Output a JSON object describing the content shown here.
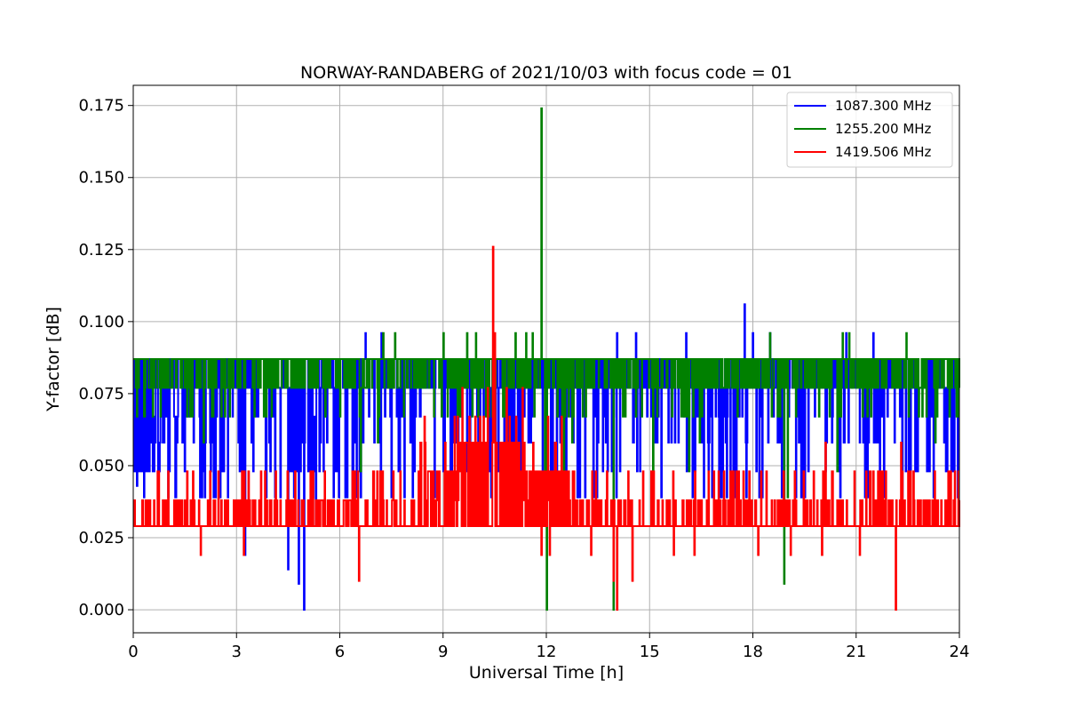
{
  "chart_data": {
    "type": "line",
    "title": "NORWAY-RANDABERG of 2021/10/03 with focus code = 01",
    "xlabel": "Universal Time [h]",
    "ylabel": "Y-factor [dB]",
    "xlim": [
      0,
      24
    ],
    "ylim": [
      -0.008,
      0.182
    ],
    "xticks": [
      0,
      3,
      6,
      9,
      12,
      15,
      18,
      21,
      24
    ],
    "xtick_labels": [
      "0",
      "3",
      "6",
      "9",
      "12",
      "15",
      "18",
      "21",
      "24"
    ],
    "yticks": [
      0.0,
      0.025,
      0.05,
      0.075,
      0.1,
      0.125,
      0.15,
      0.175
    ],
    "ytick_labels": [
      "0.000",
      "0.025",
      "0.050",
      "0.075",
      "0.100",
      "0.125",
      "0.150",
      "0.175"
    ],
    "grid": true,
    "legend_position": "top-right",
    "series": [
      {
        "name": "1087.300 MHz",
        "color": "#0000ff",
        "baseline": 0.087,
        "levels": [
          0.077,
          0.067,
          0.058,
          0.048,
          0.039
        ],
        "segments": [
          {
            "x0": 0.0,
            "x1": 0.8,
            "level": 0.048
          },
          {
            "x0": 0.8,
            "x1": 1.5,
            "level": 0.067
          },
          {
            "x0": 1.5,
            "x1": 4.5,
            "level": 0.077
          },
          {
            "x0": 4.5,
            "x1": 5.4,
            "level": 0.048
          },
          {
            "x0": 5.4,
            "x1": 24.0,
            "level": 0.077
          }
        ],
        "spikes": [
          {
            "x": 0.1,
            "y": 0.043
          },
          {
            "x": 3.25,
            "y": 0.019
          },
          {
            "x": 4.5,
            "y": 0.014
          },
          {
            "x": 4.8,
            "y": 0.009
          },
          {
            "x": 4.95,
            "y": 0.0
          },
          {
            "x": 5.3,
            "y": 0.029
          },
          {
            "x": 6.75,
            "y": 0.096
          },
          {
            "x": 7.2,
            "y": 0.096
          },
          {
            "x": 17.75,
            "y": 0.106
          },
          {
            "x": 14.05,
            "y": 0.096
          },
          {
            "x": 14.6,
            "y": 0.096
          },
          {
            "x": 16.05,
            "y": 0.096
          },
          {
            "x": 18.0,
            "y": 0.096
          },
          {
            "x": 18.5,
            "y": 0.096
          },
          {
            "x": 20.7,
            "y": 0.096
          },
          {
            "x": 20.5,
            "y": 0.048
          },
          {
            "x": 21.5,
            "y": 0.096
          },
          {
            "x": 9.5,
            "y": 0.077
          },
          {
            "x": 10.9,
            "y": 0.058
          },
          {
            "x": 12.3,
            "y": 0.048
          },
          {
            "x": 13.7,
            "y": 0.067
          }
        ]
      },
      {
        "name": "1255.200 MHz",
        "color": "#008000",
        "baseline": 0.087,
        "levels": [
          0.077,
          0.067,
          0.058,
          0.048
        ],
        "segments": [],
        "spikes": [
          {
            "x": 11.85,
            "y": 0.174
          },
          {
            "x": 7.25,
            "y": 0.096
          },
          {
            "x": 7.6,
            "y": 0.096
          },
          {
            "x": 9.0,
            "y": 0.096
          },
          {
            "x": 9.7,
            "y": 0.096
          },
          {
            "x": 9.95,
            "y": 0.096
          },
          {
            "x": 11.1,
            "y": 0.096
          },
          {
            "x": 11.4,
            "y": 0.096
          },
          {
            "x": 11.6,
            "y": 0.096
          },
          {
            "x": 18.5,
            "y": 0.096
          },
          {
            "x": 20.6,
            "y": 0.096
          },
          {
            "x": 20.8,
            "y": 0.096
          },
          {
            "x": 22.45,
            "y": 0.096
          },
          {
            "x": 12.0,
            "y": 0.0
          },
          {
            "x": 13.95,
            "y": 0.0
          },
          {
            "x": 18.9,
            "y": 0.009
          },
          {
            "x": 6.6,
            "y": 0.048
          },
          {
            "x": 2.05,
            "y": 0.058
          },
          {
            "x": 7.1,
            "y": 0.058
          },
          {
            "x": 11.95,
            "y": 0.048
          },
          {
            "x": 12.5,
            "y": 0.048
          },
          {
            "x": 15.1,
            "y": 0.048
          },
          {
            "x": 16.15,
            "y": 0.048
          },
          {
            "x": 19.0,
            "y": 0.039
          },
          {
            "x": 20.45,
            "y": 0.048
          },
          {
            "x": 23.3,
            "y": 0.058
          },
          {
            "x": 12.75,
            "y": 0.058
          },
          {
            "x": 16.45,
            "y": 0.058
          }
        ]
      },
      {
        "name": "1419.506 MHz",
        "color": "#ff0000",
        "baseline": 0.029,
        "levels": [
          0.038,
          0.048,
          0.058,
          0.067
        ],
        "segments": [
          {
            "x0": 8.2,
            "x1": 9.4,
            "level": 0.048
          },
          {
            "x0": 9.4,
            "x1": 11.4,
            "level": 0.058
          },
          {
            "x0": 11.4,
            "x1": 12.8,
            "level": 0.048
          }
        ],
        "spikes": [
          {
            "x": 10.45,
            "y": 0.126
          },
          {
            "x": 10.5,
            "y": 0.096
          },
          {
            "x": 10.3,
            "y": 0.077
          },
          {
            "x": 10.85,
            "y": 0.077
          },
          {
            "x": 11.3,
            "y": 0.077
          },
          {
            "x": 9.55,
            "y": 0.077
          },
          {
            "x": 1.95,
            "y": 0.019
          },
          {
            "x": 3.2,
            "y": 0.019
          },
          {
            "x": 6.55,
            "y": 0.01
          },
          {
            "x": 11.85,
            "y": 0.019
          },
          {
            "x": 12.1,
            "y": 0.019
          },
          {
            "x": 13.3,
            "y": 0.019
          },
          {
            "x": 13.95,
            "y": 0.01
          },
          {
            "x": 14.05,
            "y": 0.0
          },
          {
            "x": 14.5,
            "y": 0.01
          },
          {
            "x": 15.7,
            "y": 0.019
          },
          {
            "x": 16.3,
            "y": 0.019
          },
          {
            "x": 18.15,
            "y": 0.019
          },
          {
            "x": 19.1,
            "y": 0.019
          },
          {
            "x": 20.0,
            "y": 0.019
          },
          {
            "x": 21.1,
            "y": 0.019
          },
          {
            "x": 22.15,
            "y": 0.0
          },
          {
            "x": 21.7,
            "y": 0.048
          },
          {
            "x": 22.3,
            "y": 0.058
          },
          {
            "x": 17.0,
            "y": 0.048
          },
          {
            "x": 20.1,
            "y": 0.058
          },
          {
            "x": 14.8,
            "y": 0.048
          }
        ]
      }
    ]
  }
}
